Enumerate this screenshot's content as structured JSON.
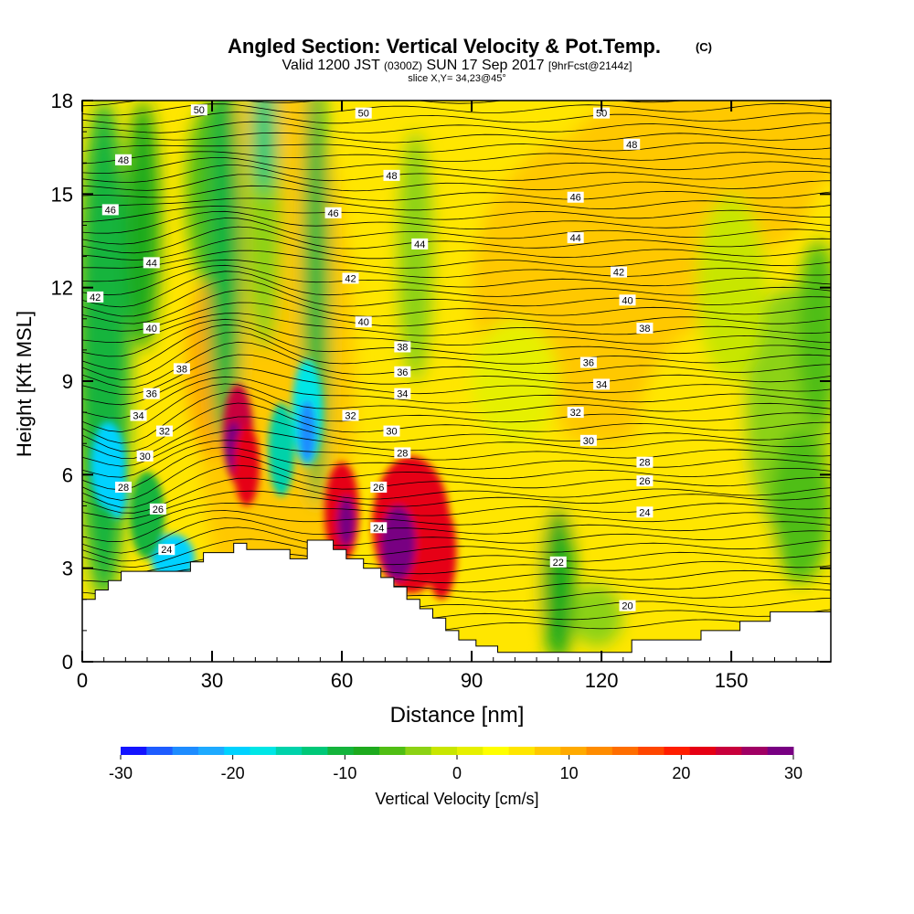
{
  "chart_data": {
    "type": "heatmap",
    "title_main": "Angled Section: Vertical Velocity & Pot.Temp.",
    "title_unit": "(C)",
    "subtitle_prefix": "Valid 1200 JST",
    "subtitle_zulu": "(0300Z)",
    "subtitle_date": "SUN 17 Sep 2017",
    "subtitle_fcst": "[9hrFcst@2144z]",
    "slice_label": "slice X,Y= 34,23@45°",
    "xlabel": "Distance [nm]",
    "ylabel": "Height [Kft MSL]",
    "xlim": [
      0,
      173
    ],
    "ylim": [
      0,
      18
    ],
    "x_ticks": [
      0,
      30,
      60,
      90,
      120,
      150
    ],
    "y_ticks": [
      0,
      3,
      6,
      9,
      12,
      15,
      18
    ],
    "colorbar_label": "Vertical Velocity [cm/s]",
    "colorbar_ticks": [
      -30,
      -20,
      -10,
      0,
      10,
      20,
      30
    ],
    "colorbar_colors": [
      "#1414ff",
      "#1e5cff",
      "#1e8cff",
      "#1eaaff",
      "#00d2ff",
      "#00e6e6",
      "#00d2aa",
      "#00c878",
      "#14b43c",
      "#1eaa1e",
      "#50be14",
      "#8cd214",
      "#c8e600",
      "#e6f000",
      "#ffff00",
      "#ffe600",
      "#ffc800",
      "#ffaa00",
      "#ff8c00",
      "#ff6e00",
      "#ff4600",
      "#ff1e00",
      "#e60014",
      "#c8003c",
      "#a00064",
      "#780082"
    ],
    "theta_labels": [
      {
        "x": 27,
        "y": 17.7,
        "text": "50"
      },
      {
        "x": 65,
        "y": 17.6,
        "text": "50"
      },
      {
        "x": 120,
        "y": 17.6,
        "text": "50"
      },
      {
        "x": 9.5,
        "y": 16.1,
        "text": "48"
      },
      {
        "x": 71.5,
        "y": 15.6,
        "text": "48"
      },
      {
        "x": 127,
        "y": 16.6,
        "text": "48"
      },
      {
        "x": 6.5,
        "y": 14.5,
        "text": "46"
      },
      {
        "x": 58,
        "y": 14.4,
        "text": "46"
      },
      {
        "x": 114,
        "y": 14.9,
        "text": "46"
      },
      {
        "x": 16,
        "y": 12.8,
        "text": "44"
      },
      {
        "x": 78,
        "y": 13.4,
        "text": "44"
      },
      {
        "x": 114,
        "y": 13.6,
        "text": "44"
      },
      {
        "x": 3,
        "y": 11.7,
        "text": "42"
      },
      {
        "x": 62,
        "y": 12.3,
        "text": "42"
      },
      {
        "x": 124,
        "y": 12.5,
        "text": "42"
      },
      {
        "x": 16,
        "y": 10.7,
        "text": "40"
      },
      {
        "x": 65,
        "y": 10.9,
        "text": "40"
      },
      {
        "x": 126,
        "y": 11.6,
        "text": "40"
      },
      {
        "x": 23,
        "y": 9.4,
        "text": "38"
      },
      {
        "x": 74,
        "y": 10.1,
        "text": "38"
      },
      {
        "x": 130,
        "y": 10.7,
        "text": "38"
      },
      {
        "x": 16,
        "y": 8.6,
        "text": "36"
      },
      {
        "x": 74,
        "y": 9.3,
        "text": "36"
      },
      {
        "x": 117,
        "y": 9.6,
        "text": "36"
      },
      {
        "x": 13,
        "y": 7.9,
        "text": "34"
      },
      {
        "x": 74,
        "y": 8.6,
        "text": "34"
      },
      {
        "x": 120,
        "y": 8.9,
        "text": "34"
      },
      {
        "x": 19,
        "y": 7.4,
        "text": "32"
      },
      {
        "x": 62,
        "y": 7.9,
        "text": "32"
      },
      {
        "x": 114,
        "y": 8.0,
        "text": "32"
      },
      {
        "x": 14.5,
        "y": 6.6,
        "text": "30"
      },
      {
        "x": 71.5,
        "y": 7.4,
        "text": "30"
      },
      {
        "x": 117,
        "y": 7.1,
        "text": "30"
      },
      {
        "x": 9.5,
        "y": 5.6,
        "text": "28"
      },
      {
        "x": 74,
        "y": 6.7,
        "text": "28"
      },
      {
        "x": 130,
        "y": 6.4,
        "text": "28"
      },
      {
        "x": 17.5,
        "y": 4.9,
        "text": "26"
      },
      {
        "x": 68.5,
        "y": 5.6,
        "text": "26"
      },
      {
        "x": 130,
        "y": 5.8,
        "text": "26"
      },
      {
        "x": 19.5,
        "y": 3.6,
        "text": "24"
      },
      {
        "x": 68.5,
        "y": 4.3,
        "text": "24"
      },
      {
        "x": 130,
        "y": 4.8,
        "text": "24"
      },
      {
        "x": 110,
        "y": 3.2,
        "text": "22"
      },
      {
        "x": 126,
        "y": 1.8,
        "text": "20"
      }
    ],
    "terrain": [
      [
        0,
        2.0
      ],
      [
        3,
        2.0
      ],
      [
        3,
        2.3
      ],
      [
        6,
        2.3
      ],
      [
        6,
        2.6
      ],
      [
        9,
        2.6
      ],
      [
        9,
        2.9
      ],
      [
        25,
        2.9
      ],
      [
        25,
        3.2
      ],
      [
        28,
        3.2
      ],
      [
        28,
        3.5
      ],
      [
        35,
        3.5
      ],
      [
        35,
        3.8
      ],
      [
        38,
        3.8
      ],
      [
        38,
        3.6
      ],
      [
        48,
        3.6
      ],
      [
        48,
        3.3
      ],
      [
        52,
        3.3
      ],
      [
        52,
        3.9
      ],
      [
        58,
        3.9
      ],
      [
        58,
        3.6
      ],
      [
        61,
        3.6
      ],
      [
        61,
        3.3
      ],
      [
        65,
        3.3
      ],
      [
        65,
        3.0
      ],
      [
        69,
        3.0
      ],
      [
        69,
        2.7
      ],
      [
        72,
        2.7
      ],
      [
        72,
        2.4
      ],
      [
        75,
        2.4
      ],
      [
        75,
        2.0
      ],
      [
        78,
        2.0
      ],
      [
        78,
        1.7
      ],
      [
        81,
        1.7
      ],
      [
        81,
        1.4
      ],
      [
        84,
        1.4
      ],
      [
        84,
        1.0
      ],
      [
        87,
        1.0
      ],
      [
        87,
        0.7
      ],
      [
        91,
        0.7
      ],
      [
        91,
        0.5
      ],
      [
        96,
        0.5
      ],
      [
        96,
        0.3
      ],
      [
        127,
        0.3
      ],
      [
        127,
        0.7
      ],
      [
        143,
        0.7
      ],
      [
        143,
        1.0
      ],
      [
        152,
        1.0
      ],
      [
        152,
        1.3
      ],
      [
        159,
        1.3
      ],
      [
        159,
        1.6
      ],
      [
        173,
        1.6
      ]
    ]
  }
}
